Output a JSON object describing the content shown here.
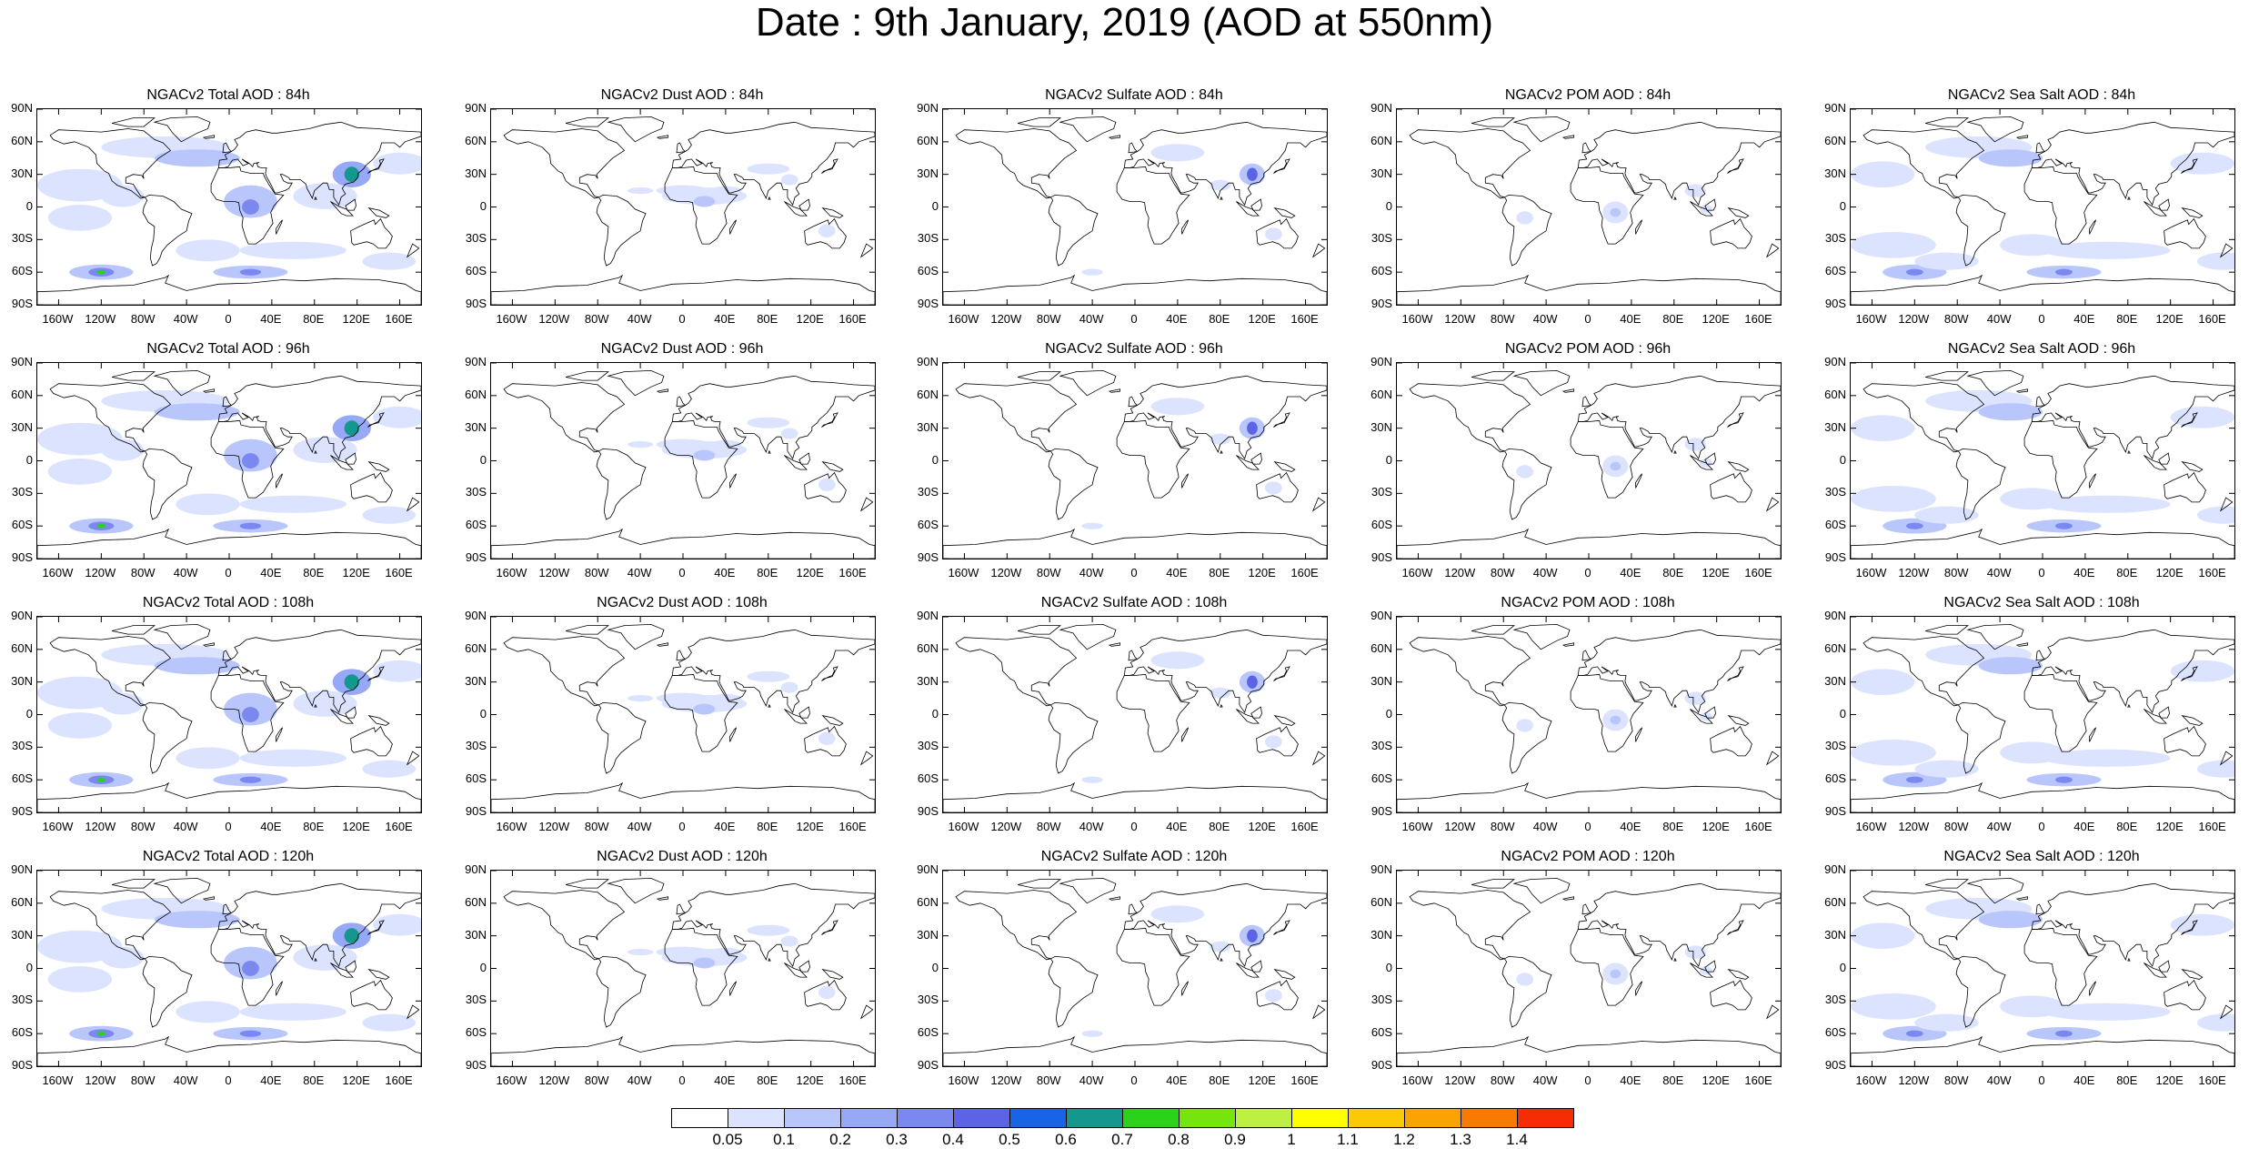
{
  "title": "Date : 9th January, 2019 (AOD at 550nm)",
  "panels": [
    [
      "NGACv2 Total AOD : 84h",
      "NGACv2 Dust AOD : 84h",
      "NGACv2 Sulfate AOD : 84h",
      "NGACv2 POM AOD : 84h",
      "NGACv2 Sea Salt AOD : 84h"
    ],
    [
      "NGACv2 Total AOD : 96h",
      "NGACv2 Dust AOD : 96h",
      "NGACv2 Sulfate AOD : 96h",
      "NGACv2 POM AOD : 96h",
      "NGACv2 Sea Salt AOD : 96h"
    ],
    [
      "NGACv2 Total AOD : 108h",
      "NGACv2 Dust AOD : 108h",
      "NGACv2 Sulfate AOD : 108h",
      "NGACv2 POM AOD : 108h",
      "NGACv2 Sea Salt AOD : 108h"
    ],
    [
      "NGACv2 Total AOD : 120h",
      "NGACv2 Dust AOD : 120h",
      "NGACv2 Sulfate AOD : 120h",
      "NGACv2 POM AOD : 120h",
      "NGACv2 Sea Salt  AOD : 120h"
    ]
  ],
  "lat_labels": [
    "90N",
    "60N",
    "30N",
    "0",
    "30S",
    "60S",
    "90S"
  ],
  "lon_labels": [
    "160W",
    "120W",
    "80W",
    "40W",
    "0",
    "40E",
    "80E",
    "120E",
    "160E"
  ],
  "lon_values": [
    -160,
    -120,
    -80,
    -40,
    0,
    40,
    80,
    120,
    160
  ],
  "lat_values": [
    90,
    60,
    30,
    0,
    -30,
    -60,
    -90
  ],
  "colorbar": {
    "labels": [
      "0.05",
      "0.1",
      "0.2",
      "0.3",
      "0.4",
      "0.5",
      "0.6",
      "0.7",
      "0.8",
      "0.9",
      "1",
      "1.1",
      "1.2",
      "1.3",
      "1.4"
    ],
    "colors": [
      "#ffffff",
      "#dbe3ff",
      "#b8c6fb",
      "#96a8f6",
      "#7a88ef",
      "#5c63e6",
      "#1864e6",
      "#14988e",
      "#2ad21a",
      "#74e60e",
      "#bdf040",
      "#ffff00",
      "#fdc808",
      "#fba204",
      "#f87a02",
      "#f42e02"
    ]
  }
}
